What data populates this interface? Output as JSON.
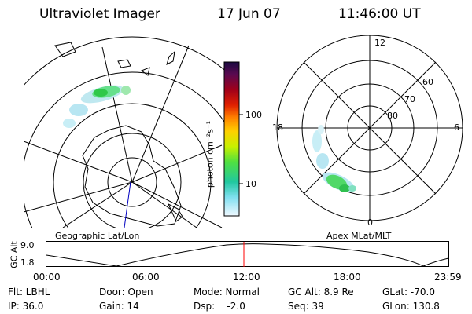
{
  "header": {
    "title": "Ultraviolet Imager",
    "date": "17 Jun 07",
    "time": "11:46:00 UT"
  },
  "colorbar": {
    "unit_label": "photon cm⁻²s⁻¹",
    "ticks": [
      "100",
      "10"
    ]
  },
  "left_panel": {
    "caption": "Geographic Lat/Lon"
  },
  "right_panel": {
    "caption": "Apex MLat/MLT",
    "mlt_labels": [
      "12",
      "18",
      "6",
      "0"
    ],
    "mlat_labels": [
      "60",
      "70",
      "80"
    ]
  },
  "altitude_plot": {
    "ylabel": "GC Alt",
    "y_ticks": [
      "9.0",
      "1.8"
    ],
    "x_ticks": [
      "00:00",
      "06:00",
      "12:00",
      "18:00",
      "23:59"
    ],
    "current_time_marker": "11:46"
  },
  "status": {
    "flt": "Flt: LBHL",
    "door": "Door: Open",
    "mode": "Mode: Normal",
    "gc_alt": "GC Alt: 8.9 Re",
    "glat": "GLat: -70.0",
    "ip": "IP: 36.0",
    "gain": "Gain: 14",
    "dsp": "Dsp:    -2.0",
    "seq": "Seq: 39",
    "glon": "GLon: 130.8"
  },
  "colors": {
    "marker": "#ff0000",
    "coastline": "#000000",
    "magnetic_pole_line": "#0000c0"
  }
}
